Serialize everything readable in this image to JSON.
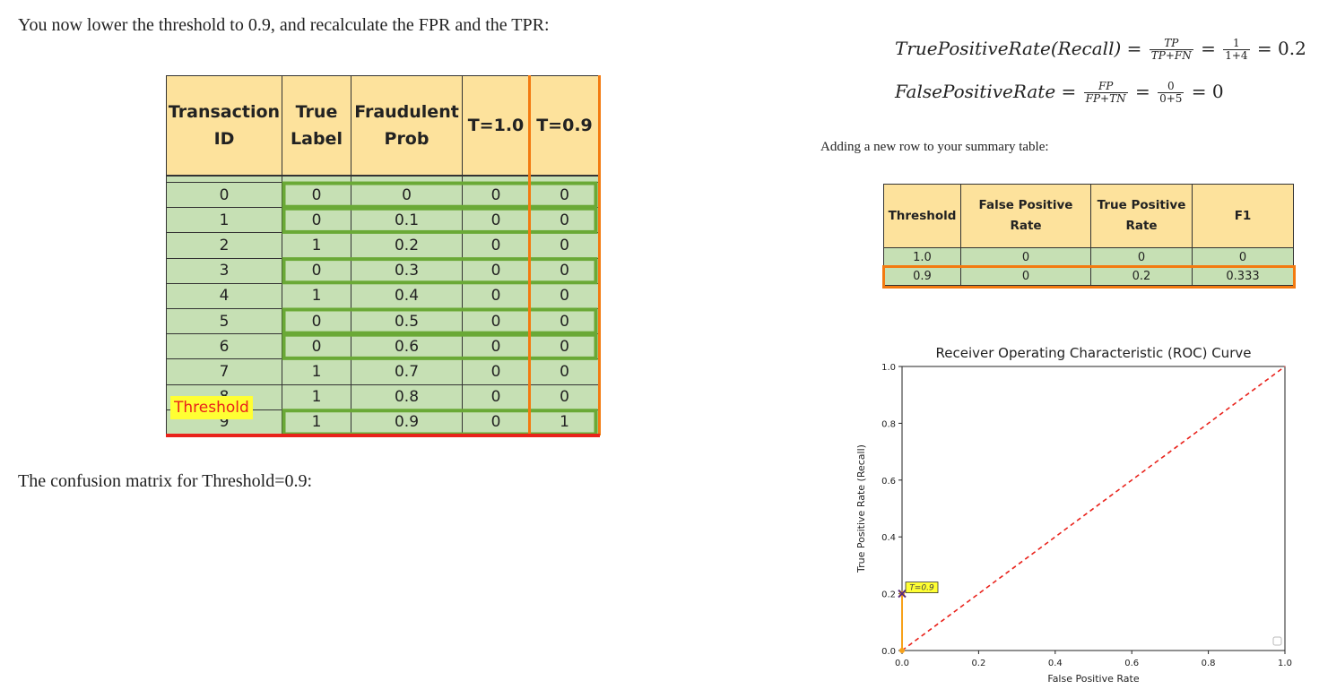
{
  "intro_text": "You now lower the threshold to 0.9, and recalculate the FPR and the TPR:",
  "confusion_text": "The confusion matrix for Threshold=0.9:",
  "adding_text": "Adding a new row to your summary table:",
  "threshold_label": "Threshold",
  "colors": {
    "header_bg": "#fde29c",
    "cell_bg": "#c6e0b4",
    "green_box": "#6aa936",
    "orange": "#f37a10",
    "red": "#e9221b",
    "label_yellow": "#ffff33"
  },
  "formulas": {
    "tpr": {
      "lhs": "TruePositiveRate(Recall)",
      "num": "TP",
      "den": "TP+FN",
      "num2": "1",
      "den2": "1+4",
      "result": "0.2"
    },
    "fpr": {
      "lhs": "FalsePositiveRate",
      "num": "FP",
      "den": "FP+TN",
      "num2": "0",
      "den2": "0+5",
      "result": "0"
    }
  },
  "transactions": {
    "headers": [
      "Transaction ID",
      "True Label",
      "Fraudulent Prob",
      "T=1.0",
      "T=0.9"
    ],
    "rows": [
      [
        "0",
        "0",
        "0",
        "0",
        "0"
      ],
      [
        "1",
        "0",
        "0.1",
        "0",
        "0"
      ],
      [
        "2",
        "1",
        "0.2",
        "0",
        "0"
      ],
      [
        "3",
        "0",
        "0.3",
        "0",
        "0"
      ],
      [
        "4",
        "1",
        "0.4",
        "0",
        "0"
      ],
      [
        "5",
        "0",
        "0.5",
        "0",
        "0"
      ],
      [
        "6",
        "0",
        "0.6",
        "0",
        "0"
      ],
      [
        "7",
        "1",
        "0.7",
        "0",
        "0"
      ],
      [
        "8",
        "1",
        "0.8",
        "0",
        "0"
      ],
      [
        "9",
        "1",
        "0.9",
        "0",
        "1"
      ]
    ]
  },
  "summary": {
    "headers": [
      "Threshold",
      "False Positive Rate",
      "True Positive Rate",
      "F1"
    ],
    "rows": [
      [
        "1.0",
        "0",
        "0",
        "0"
      ],
      [
        "0.9",
        "0",
        "0.2",
        "0.333"
      ]
    ]
  },
  "chart_data": {
    "type": "line",
    "title": "Receiver Operating Characteristic (ROC) Curve",
    "xlabel": "False Positive Rate",
    "ylabel": "True Positive Rate (Recall)",
    "xlim": [
      0,
      1
    ],
    "ylim": [
      0,
      1
    ],
    "xticks": [
      "0.0",
      "0.2",
      "0.4",
      "0.6",
      "0.8",
      "1.0"
    ],
    "yticks": [
      "0.0",
      "0.2",
      "0.4",
      "0.6",
      "0.8",
      "1.0"
    ],
    "series": [
      {
        "points": [
          [
            0,
            0
          ],
          [
            0,
            0.2
          ]
        ],
        "color": "#f7a11a",
        "style": "solid"
      },
      {
        "points": [
          [
            0,
            0
          ],
          [
            1,
            1
          ]
        ],
        "color": "#e9221b",
        "style": "dashed"
      }
    ],
    "annotation": {
      "text": "T=0.9",
      "x": 0,
      "y": 0.2
    },
    "grid": false,
    "legend": "bottom-right"
  }
}
